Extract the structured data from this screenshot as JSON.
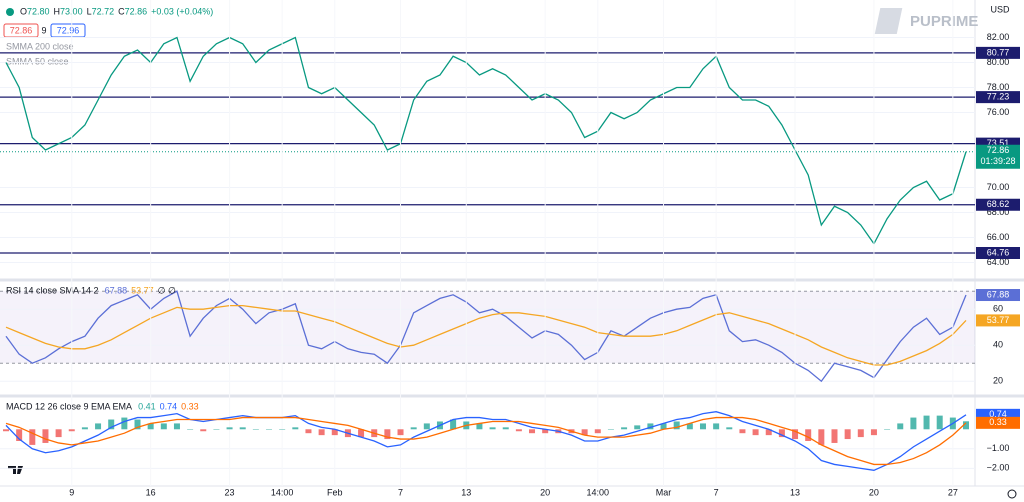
{
  "header": {
    "ohlc": [
      {
        "k": "O",
        "v": "72.80"
      },
      {
        "k": "H",
        "v": "73.00"
      },
      {
        "k": "L",
        "v": "72.72"
      },
      {
        "k": "C",
        "v": "72.86"
      },
      {
        "k": "",
        "v": "+0.03 (+0.04%)"
      }
    ],
    "bid": "72.86",
    "spread": "9",
    "ask": "72.96",
    "indicators": [
      "SMMA 200 close",
      "SMMA 50 close"
    ],
    "brand": "PUPRIME",
    "currency": "USD"
  },
  "chart_data": [
    {
      "type": "line",
      "ylim": [
        63,
        85
      ],
      "yticks": [
        {
          "value": 64,
          "label": "64.00"
        },
        {
          "value": 66,
          "label": "66.00"
        },
        {
          "value": 68,
          "label": "68.00"
        },
        {
          "value": 70,
          "label": "70.00"
        },
        {
          "value": 76,
          "label": "76.00"
        },
        {
          "value": 78,
          "label": "78.00"
        },
        {
          "value": 80,
          "label": "80.00"
        },
        {
          "value": 82,
          "label": "82.00"
        }
      ],
      "levels": [
        80.77,
        77.23,
        73.51,
        68.62,
        64.76
      ],
      "level_color": "#1c1c6e",
      "countdown": "01:39:28",
      "series": [
        {
          "name": "Close",
          "color": "#089981",
          "values": [
            80,
            78,
            74,
            73,
            73.5,
            74,
            75,
            77,
            79,
            80.5,
            81,
            80,
            81.5,
            82,
            78.5,
            80.5,
            81.5,
            82,
            81.5,
            80,
            81,
            81.5,
            82,
            78,
            77.5,
            78,
            77,
            76,
            75,
            73,
            73.5,
            77,
            78.5,
            79,
            80.5,
            80,
            79,
            79.5,
            79,
            78,
            77,
            77.5,
            77,
            76,
            74,
            74.5,
            76,
            75.5,
            76,
            77,
            77.5,
            78,
            78,
            79.5,
            80.5,
            78,
            77,
            77,
            76.5,
            75,
            73,
            71,
            67,
            68.5,
            68,
            67,
            65.5,
            67.5,
            69,
            70,
            70.5,
            69,
            69.5,
            72.86
          ]
        }
      ]
    },
    {
      "type": "line",
      "title": "RSI 14 close SMA 14 2",
      "extra": "∅ ∅",
      "ylim": [
        14,
        74
      ],
      "yticks": [
        20,
        40,
        60
      ],
      "band": [
        30,
        70
      ],
      "series": [
        {
          "name": "RSI",
          "color": "#5b6fd6",
          "values": [
            45,
            35,
            30,
            33,
            38,
            42,
            45,
            55,
            62,
            65,
            68,
            60,
            66,
            70,
            45,
            55,
            62,
            66,
            60,
            52,
            58,
            60,
            63,
            40,
            38,
            42,
            38,
            36,
            35,
            30,
            40,
            58,
            62,
            66,
            68,
            64,
            58,
            60,
            56,
            50,
            44,
            48,
            46,
            40,
            32,
            36,
            48,
            45,
            50,
            55,
            58,
            60,
            61,
            66,
            68,
            48,
            42,
            43,
            40,
            36,
            30,
            26,
            20,
            30,
            28,
            26,
            22,
            32,
            42,
            50,
            55,
            46,
            50,
            67.88
          ]
        },
        {
          "name": "SMA",
          "color": "#f5a623",
          "values": [
            50,
            47,
            44,
            41,
            39,
            38,
            38,
            40,
            43,
            47,
            51,
            55,
            58,
            61,
            60,
            60,
            61,
            62,
            62,
            61,
            60,
            59,
            59,
            57,
            55,
            53,
            50,
            47,
            44,
            41,
            39,
            40,
            43,
            46,
            49,
            52,
            55,
            57,
            58,
            58,
            57,
            56,
            54,
            52,
            50,
            47,
            46,
            45,
            45,
            45,
            46,
            48,
            51,
            54,
            57,
            58,
            56,
            54,
            52,
            49,
            46,
            43,
            39,
            36,
            33,
            31,
            29,
            29,
            31,
            34,
            37,
            41,
            46,
            53.77
          ]
        }
      ]
    },
    {
      "type": "line",
      "title": "MACD 12 26 close 9 EMA EMA",
      "ylim": [
        -2.7,
        1.5
      ],
      "yticks": [
        {
          "value": -1,
          "label": "−1.00"
        },
        {
          "value": -2,
          "label": "−2.00"
        }
      ],
      "categories": [
        null,
        null,
        null,
        null,
        null,
        "9",
        null,
        null,
        null,
        null,
        null,
        "16",
        null,
        null,
        null,
        null,
        null,
        "23",
        null,
        null,
        null,
        "14:00",
        null,
        null,
        null,
        "Feb",
        null,
        null,
        null,
        null,
        "7",
        null,
        null,
        null,
        null,
        "13",
        null,
        null,
        null,
        null,
        null,
        "20",
        null,
        null,
        null,
        "14:00",
        null,
        null,
        null,
        null,
        "Mar",
        null,
        null,
        null,
        "7",
        null,
        null,
        null,
        null,
        null,
        "13",
        null,
        null,
        null,
        null,
        null,
        "20",
        null,
        null,
        null,
        null,
        null,
        "27",
        null
      ],
      "series": [
        {
          "name": "Histogram",
          "type": "bar",
          "color": "#26a69a",
          "negative_color": "#ef5350",
          "values": [
            -0.1,
            -0.6,
            -0.8,
            -0.7,
            -0.4,
            -0.1,
            0.1,
            0.3,
            0.5,
            0.6,
            0.5,
            0.3,
            0.3,
            0.3,
            0,
            -0.1,
            0,
            0.1,
            0.1,
            0,
            0,
            0,
            0.1,
            -0.2,
            -0.3,
            -0.3,
            -0.4,
            -0.4,
            -0.4,
            -0.5,
            -0.3,
            0.1,
            0.3,
            0.4,
            0.5,
            0.4,
            0.3,
            0.1,
            0.1,
            -0.1,
            -0.2,
            -0.2,
            -0.2,
            -0.2,
            -0.3,
            -0.2,
            0,
            0.1,
            0.2,
            0.3,
            0.3,
            0.4,
            0.3,
            0.3,
            0.3,
            0.1,
            -0.2,
            -0.3,
            -0.3,
            -0.4,
            -0.5,
            -0.6,
            -0.8,
            -0.7,
            -0.5,
            -0.4,
            -0.3,
            0,
            0.3,
            0.6,
            0.7,
            0.7,
            0.6,
            0.41
          ]
        },
        {
          "name": "MACD",
          "color": "#2962ff",
          "values": [
            0.2,
            -0.5,
            -1.0,
            -1.2,
            -1.1,
            -0.9,
            -0.6,
            -0.3,
            0.1,
            0.4,
            0.6,
            0.6,
            0.7,
            0.8,
            0.5,
            0.4,
            0.5,
            0.6,
            0.7,
            0.6,
            0.6,
            0.6,
            0.7,
            0.3,
            0.1,
            0.0,
            -0.2,
            -0.4,
            -0.6,
            -0.9,
            -0.8,
            -0.4,
            -0.1,
            0.2,
            0.5,
            0.6,
            0.6,
            0.5,
            0.5,
            0.3,
            0.1,
            0.0,
            -0.1,
            -0.3,
            -0.6,
            -0.6,
            -0.4,
            -0.3,
            -0.1,
            0.1,
            0.3,
            0.5,
            0.6,
            0.8,
            0.9,
            0.7,
            0.4,
            0.2,
            0.0,
            -0.3,
            -0.6,
            -1.0,
            -1.6,
            -1.8,
            -1.9,
            -2.0,
            -2.1,
            -1.8,
            -1.4,
            -0.9,
            -0.5,
            -0.1,
            0.3,
            0.74
          ]
        },
        {
          "name": "Signal",
          "color": "#ff6d00",
          "values": [
            0.3,
            0.1,
            -0.2,
            -0.5,
            -0.7,
            -0.8,
            -0.7,
            -0.6,
            -0.4,
            -0.2,
            0.1,
            0.3,
            0.4,
            0.5,
            0.5,
            0.5,
            0.5,
            0.5,
            0.6,
            0.6,
            0.6,
            0.6,
            0.6,
            0.5,
            0.4,
            0.3,
            0.2,
            0.0,
            -0.2,
            -0.4,
            -0.5,
            -0.5,
            -0.4,
            -0.2,
            0.0,
            0.2,
            0.3,
            0.4,
            0.4,
            0.4,
            0.3,
            0.2,
            0.1,
            -0.1,
            -0.3,
            -0.4,
            -0.4,
            -0.4,
            -0.3,
            -0.2,
            0.0,
            0.1,
            0.3,
            0.5,
            0.6,
            0.6,
            0.6,
            0.5,
            0.3,
            0.1,
            -0.1,
            -0.4,
            -0.8,
            -1.1,
            -1.4,
            -1.6,
            -1.8,
            -1.8,
            -1.7,
            -1.5,
            -1.2,
            -0.8,
            -0.3,
            0.33
          ]
        }
      ]
    }
  ]
}
